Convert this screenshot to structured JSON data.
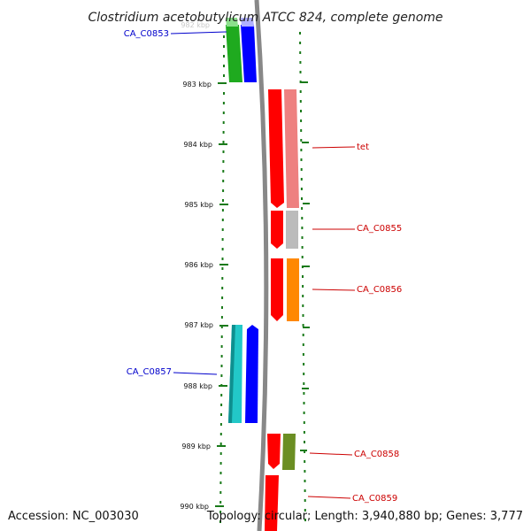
{
  "title": "Clostridium acetobutylicum ATCC 824, complete genome",
  "footer": {
    "accession": "Accession: NC_003030",
    "topology": "Topology: circular; Length: 3,940,880 bp; Genes: 3,777"
  },
  "ticks": [
    "983 kbp",
    "984 kbp",
    "985 kbp",
    "986 kbp",
    "987 kbp",
    "988 kbp",
    "989 kbp",
    "990 kbp"
  ],
  "faded_tick": "982 kbp",
  "gene_labels": {
    "left": [
      "CA_C0853",
      "CA_C0857"
    ],
    "right": [
      "tet",
      "CA_C0855",
      "CA_C0856",
      "CA_C0858",
      "CA_C0859"
    ]
  },
  "colors": {
    "forward_label": "#0000cc",
    "reverse_label": "#cc0000",
    "backbone": "#888888",
    "dots": "#1a7a1a",
    "forward_cds": "#0000ff",
    "reverse_cds": "#ff0000"
  }
}
